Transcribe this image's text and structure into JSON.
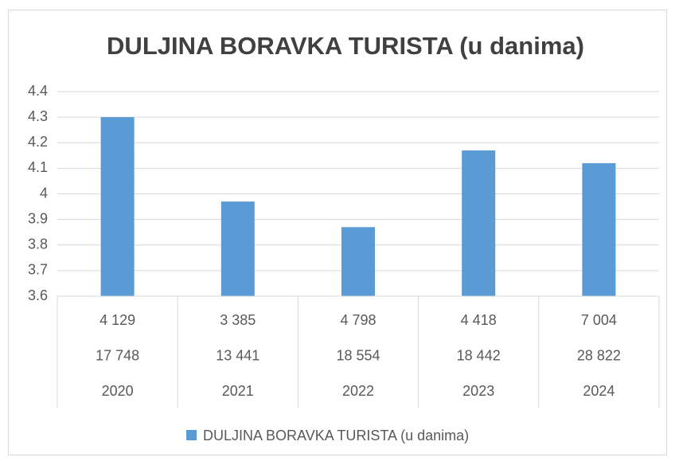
{
  "chart_data": {
    "type": "bar",
    "title": "DULJINA BORAVKA TURISTA (u danima)",
    "categories": [
      [
        "4 129",
        "17 748",
        "2020"
      ],
      [
        "3 385",
        "13 441",
        "2021"
      ],
      [
        "4 798",
        "18 554",
        "2022"
      ],
      [
        "4 418",
        "18 442",
        "2023"
      ],
      [
        "7 004",
        "28 822",
        "2024"
      ]
    ],
    "series": [
      {
        "name": "DULJINA BORAVKA TURISTA (u danima)",
        "color": "#5b9bd5",
        "values": [
          4.3,
          3.97,
          3.87,
          4.17,
          4.12
        ]
      }
    ],
    "ylim": [
      3.6,
      4.4
    ],
    "yticks": [
      3.6,
      3.7,
      3.8,
      3.9,
      4,
      4.1,
      4.2,
      4.3,
      4.4
    ],
    "grid": true,
    "legend": "bottom"
  }
}
